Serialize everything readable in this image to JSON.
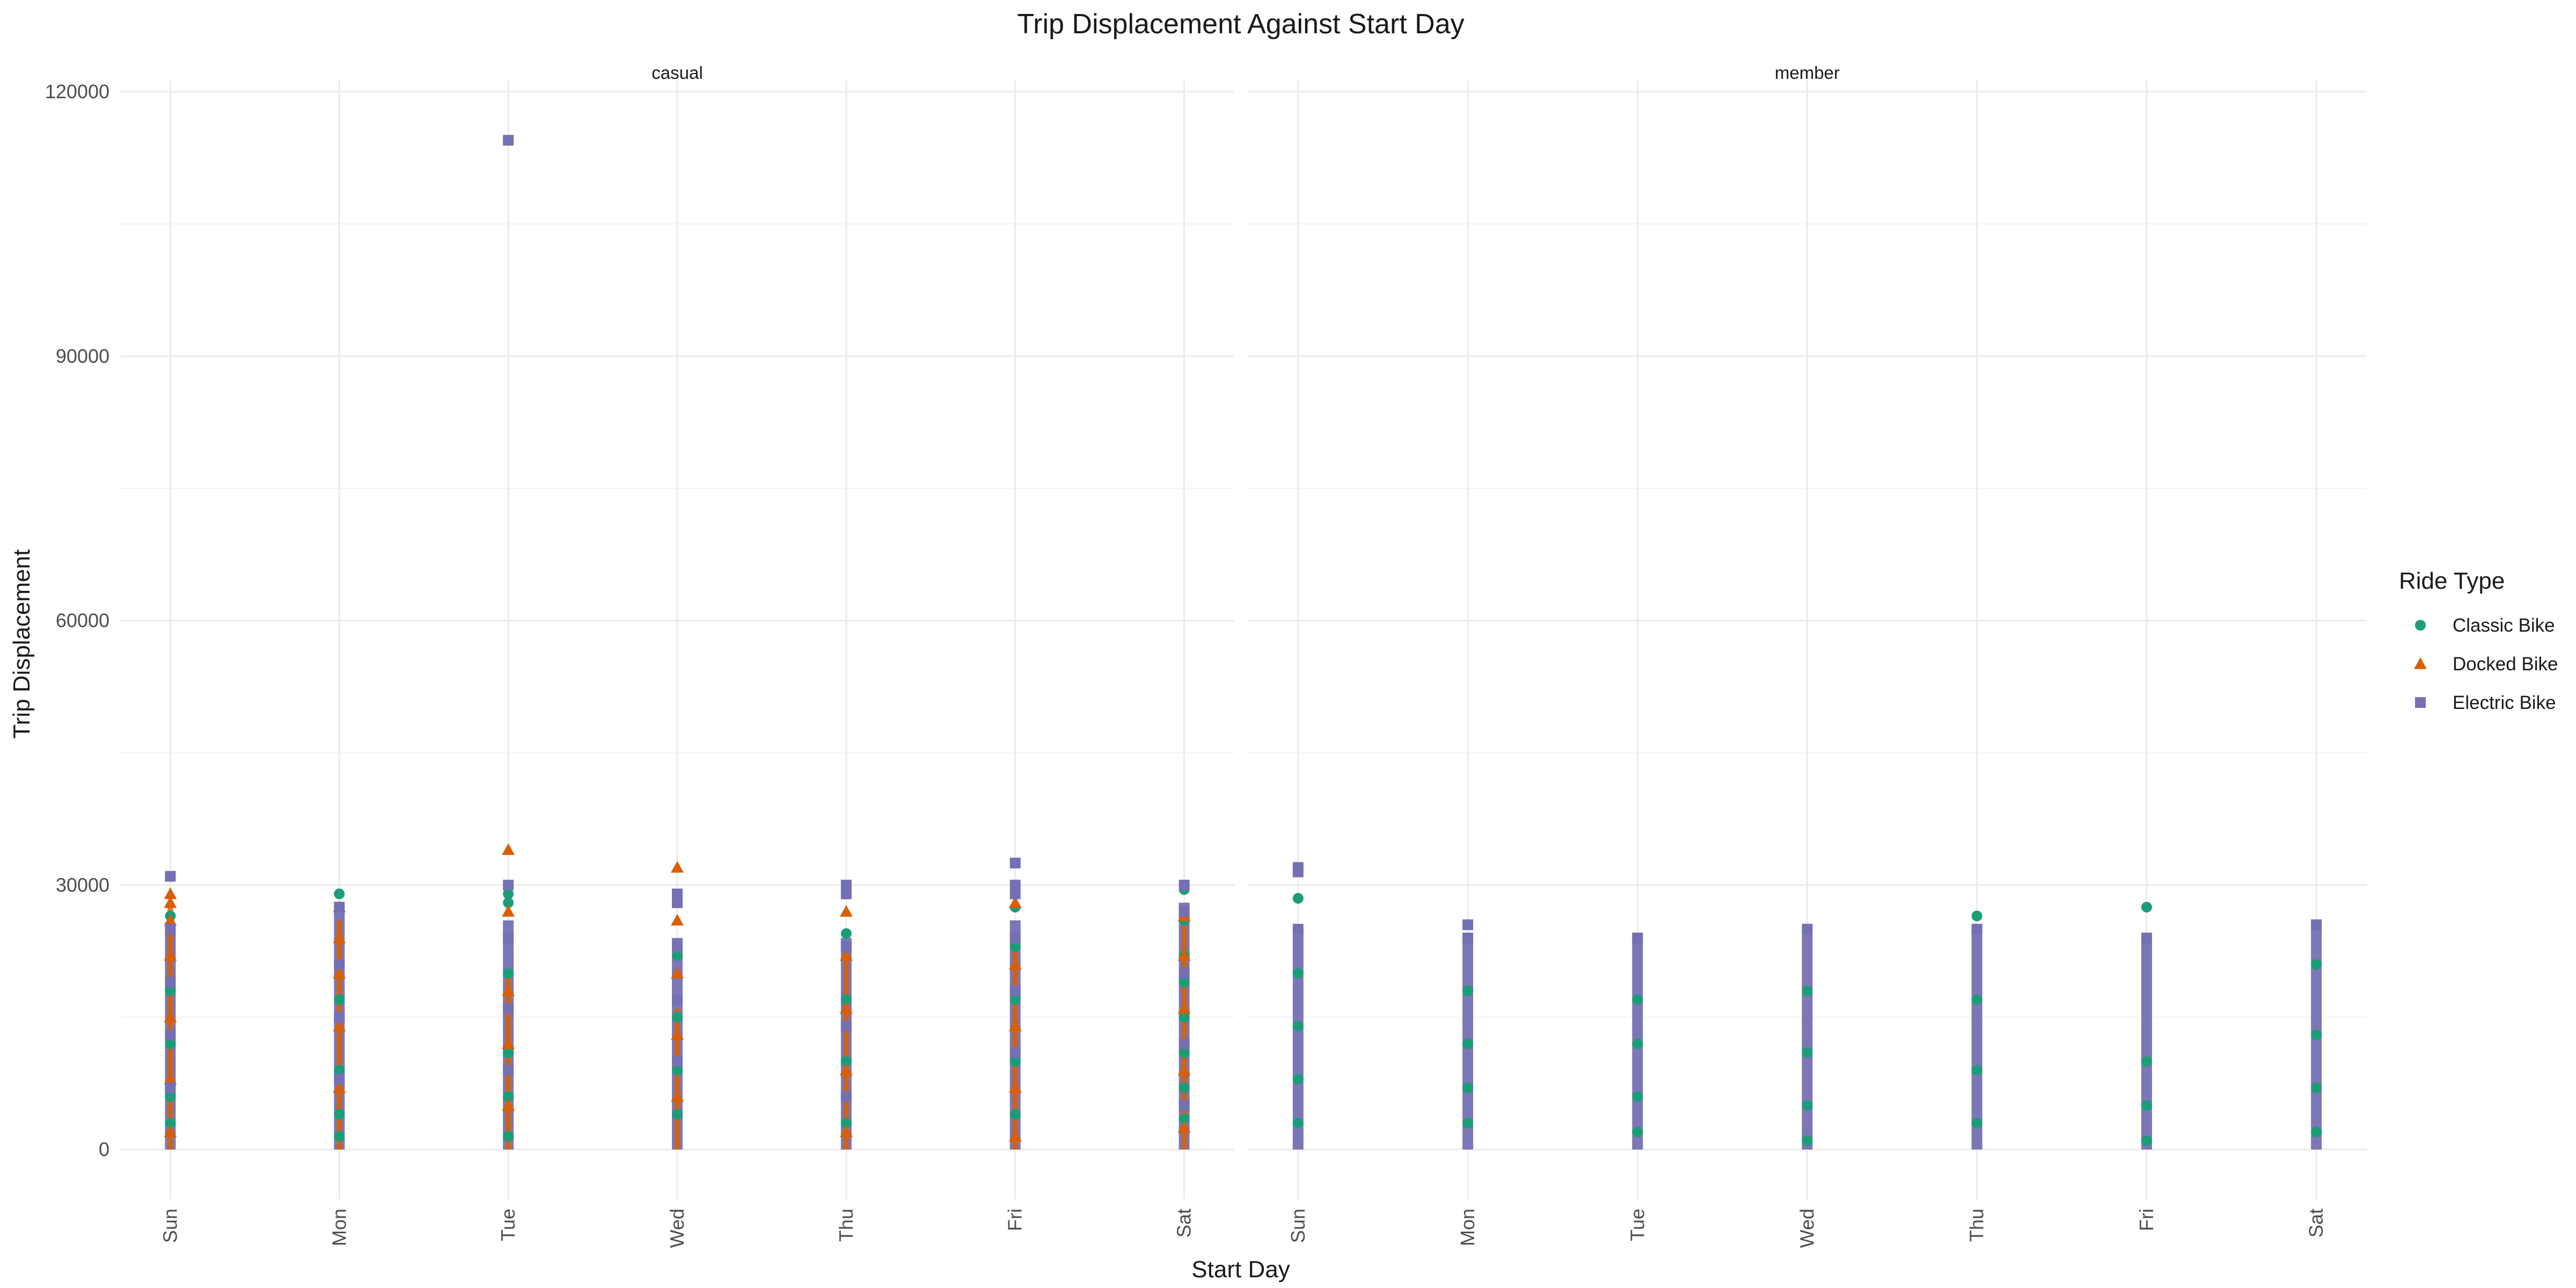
{
  "chart_data": {
    "type": "scatter",
    "title": "Trip Displacement Against Start Day",
    "xlabel": "Start Day",
    "ylabel": "Trip Displacement",
    "categories": [
      "Sun",
      "Mon",
      "Tue",
      "Wed",
      "Thu",
      "Fri",
      "Sat"
    ],
    "ylim": [
      -5000,
      120000
    ],
    "yticks": [
      "0",
      "30000",
      "60000",
      "90000",
      "120000"
    ],
    "ytick_values": [
      0,
      30000,
      60000,
      90000,
      120000
    ],
    "grid": true,
    "legend": {
      "title": "Ride Type",
      "placement": "right"
    },
    "facets": [
      {
        "label": "casual",
        "series": [
          {
            "name": "Classic Bike",
            "color": "#1b9e77",
            "shape": "circle",
            "points": [
              {
                "x": "Sun",
                "y": 26500
              },
              {
                "x": "Sun",
                "y": 18000
              },
              {
                "x": "Sun",
                "y": 12000
              },
              {
                "x": "Sun",
                "y": 6000
              },
              {
                "x": "Sun",
                "y": 3000
              },
              {
                "x": "Mon",
                "y": 29000
              },
              {
                "x": "Mon",
                "y": 17000
              },
              {
                "x": "Mon",
                "y": 9000
              },
              {
                "x": "Mon",
                "y": 4000
              },
              {
                "x": "Mon",
                "y": 1500
              },
              {
                "x": "Tue",
                "y": 29000
              },
              {
                "x": "Tue",
                "y": 28000
              },
              {
                "x": "Tue",
                "y": 20000
              },
              {
                "x": "Tue",
                "y": 11000
              },
              {
                "x": "Tue",
                "y": 6000
              },
              {
                "x": "Tue",
                "y": 1500
              },
              {
                "x": "Wed",
                "y": 22000
              },
              {
                "x": "Wed",
                "y": 15000
              },
              {
                "x": "Wed",
                "y": 9000
              },
              {
                "x": "Wed",
                "y": 4000
              },
              {
                "x": "Thu",
                "y": 24500
              },
              {
                "x": "Thu",
                "y": 17000
              },
              {
                "x": "Thu",
                "y": 10000
              },
              {
                "x": "Thu",
                "y": 3000
              },
              {
                "x": "Fri",
                "y": 27500
              },
              {
                "x": "Fri",
                "y": 23000
              },
              {
                "x": "Fri",
                "y": 17000
              },
              {
                "x": "Fri",
                "y": 10000
              },
              {
                "x": "Fri",
                "y": 4000
              },
              {
                "x": "Sat",
                "y": 29500
              },
              {
                "x": "Sat",
                "y": 26000
              },
              {
                "x": "Sat",
                "y": 22000
              },
              {
                "x": "Sat",
                "y": 19000
              },
              {
                "x": "Sat",
                "y": 15000
              },
              {
                "x": "Sat",
                "y": 11000
              },
              {
                "x": "Sat",
                "y": 7000
              },
              {
                "x": "Sat",
                "y": 3500
              }
            ]
          },
          {
            "name": "Docked Bike",
            "color": "#d95f02",
            "shape": "triangle",
            "points": [
              {
                "x": "Sun",
                "y": 29000
              },
              {
                "x": "Sun",
                "y": 28000
              },
              {
                "x": "Sun",
                "y": 26000
              },
              {
                "x": "Sun",
                "y": 22000
              },
              {
                "x": "Sun",
                "y": 15000
              },
              {
                "x": "Sun",
                "y": 8000
              },
              {
                "x": "Sun",
                "y": 2000
              },
              {
                "x": "Mon",
                "y": 27500
              },
              {
                "x": "Mon",
                "y": 24000
              },
              {
                "x": "Mon",
                "y": 20000
              },
              {
                "x": "Mon",
                "y": 14000
              },
              {
                "x": "Mon",
                "y": 7000
              },
              {
                "x": "Tue",
                "y": 34000
              },
              {
                "x": "Tue",
                "y": 27000
              },
              {
                "x": "Tue",
                "y": 18000
              },
              {
                "x": "Tue",
                "y": 12000
              },
              {
                "x": "Tue",
                "y": 5000
              },
              {
                "x": "Wed",
                "y": 32000
              },
              {
                "x": "Wed",
                "y": 26000
              },
              {
                "x": "Wed",
                "y": 20000
              },
              {
                "x": "Wed",
                "y": 13000
              },
              {
                "x": "Wed",
                "y": 6000
              },
              {
                "x": "Thu",
                "y": 27000
              },
              {
                "x": "Thu",
                "y": 22000
              },
              {
                "x": "Thu",
                "y": 16000
              },
              {
                "x": "Thu",
                "y": 9000
              },
              {
                "x": "Thu",
                "y": 2000
              },
              {
                "x": "Fri",
                "y": 28000
              },
              {
                "x": "Fri",
                "y": 21000
              },
              {
                "x": "Fri",
                "y": 14000
              },
              {
                "x": "Fri",
                "y": 7000
              },
              {
                "x": "Fri",
                "y": 1500
              },
              {
                "x": "Sat",
                "y": 26500
              },
              {
                "x": "Sat",
                "y": 22000
              },
              {
                "x": "Sat",
                "y": 16000
              },
              {
                "x": "Sat",
                "y": 9000
              },
              {
                "x": "Sat",
                "y": 2500
              }
            ]
          },
          {
            "name": "Electric Bike",
            "color": "#7570b3",
            "shape": "square",
            "points": [
              {
                "x": "Sun",
                "y": 31000
              },
              {
                "x": "Sun",
                "y": 25000
              },
              {
                "x": "Sun",
                "y": 19000
              },
              {
                "x": "Sun",
                "y": 13000
              },
              {
                "x": "Sun",
                "y": 7000
              },
              {
                "x": "Mon",
                "y": 27500
              },
              {
                "x": "Mon",
                "y": 21000
              },
              {
                "x": "Mon",
                "y": 15000
              },
              {
                "x": "Mon",
                "y": 8000
              },
              {
                "x": "Tue",
                "y": 114500
              },
              {
                "x": "Tue",
                "y": 30000
              },
              {
                "x": "Tue",
                "y": 24000
              },
              {
                "x": "Tue",
                "y": 16000
              },
              {
                "x": "Tue",
                "y": 9000
              },
              {
                "x": "Wed",
                "y": 29000
              },
              {
                "x": "Wed",
                "y": 28000
              },
              {
                "x": "Wed",
                "y": 23000
              },
              {
                "x": "Wed",
                "y": 17000
              },
              {
                "x": "Wed",
                "y": 10000
              },
              {
                "x": "Thu",
                "y": 30000
              },
              {
                "x": "Thu",
                "y": 29000
              },
              {
                "x": "Thu",
                "y": 23000
              },
              {
                "x": "Thu",
                "y": 14000
              },
              {
                "x": "Thu",
                "y": 6000
              },
              {
                "x": "Fri",
                "y": 32500
              },
              {
                "x": "Fri",
                "y": 30000
              },
              {
                "x": "Fri",
                "y": 29000
              },
              {
                "x": "Fri",
                "y": 24000
              },
              {
                "x": "Fri",
                "y": 18000
              },
              {
                "x": "Fri",
                "y": 11000
              },
              {
                "x": "Sat",
                "y": 30000
              },
              {
                "x": "Sat",
                "y": 27000
              },
              {
                "x": "Sat",
                "y": 20000
              },
              {
                "x": "Sat",
                "y": 12000
              },
              {
                "x": "Sat",
                "y": 5000
              }
            ]
          }
        ],
        "column_ranges": [
          {
            "x": "Sun",
            "series": "Electric Bike",
            "min": 0,
            "max": 25000
          },
          {
            "x": "Sun",
            "series": "Docked Bike",
            "min": 0,
            "max": 28000
          },
          {
            "x": "Mon",
            "series": "Electric Bike",
            "min": 0,
            "max": 27000
          },
          {
            "x": "Mon",
            "series": "Docked Bike",
            "min": 0,
            "max": 26000
          },
          {
            "x": "Tue",
            "series": "Electric Bike",
            "min": 0,
            "max": 26000
          },
          {
            "x": "Tue",
            "series": "Docked Bike",
            "min": 0,
            "max": 20000
          },
          {
            "x": "Wed",
            "series": "Electric Bike",
            "min": 0,
            "max": 24000
          },
          {
            "x": "Wed",
            "series": "Docked Bike",
            "min": 0,
            "max": 16000
          },
          {
            "x": "Thu",
            "series": "Electric Bike",
            "min": 0,
            "max": 24000
          },
          {
            "x": "Thu",
            "series": "Docked Bike",
            "min": 0,
            "max": 22000
          },
          {
            "x": "Fri",
            "series": "Electric Bike",
            "min": 0,
            "max": 26000
          },
          {
            "x": "Fri",
            "series": "Docked Bike",
            "min": 0,
            "max": 24000
          },
          {
            "x": "Sat",
            "series": "Electric Bike",
            "min": 0,
            "max": 28000
          },
          {
            "x": "Sat",
            "series": "Docked Bike",
            "min": 0,
            "max": 27000
          }
        ]
      },
      {
        "label": "member",
        "series": [
          {
            "name": "Classic Bike",
            "color": "#1b9e77",
            "shape": "circle",
            "points": [
              {
                "x": "Sun",
                "y": 28500
              },
              {
                "x": "Sun",
                "y": 25000
              },
              {
                "x": "Sun",
                "y": 20000
              },
              {
                "x": "Sun",
                "y": 14000
              },
              {
                "x": "Sun",
                "y": 8000
              },
              {
                "x": "Sun",
                "y": 3000
              },
              {
                "x": "Mon",
                "y": 18000
              },
              {
                "x": "Mon",
                "y": 12000
              },
              {
                "x": "Mon",
                "y": 7000
              },
              {
                "x": "Mon",
                "y": 3000
              },
              {
                "x": "Tue",
                "y": 17000
              },
              {
                "x": "Tue",
                "y": 12000
              },
              {
                "x": "Tue",
                "y": 6000
              },
              {
                "x": "Tue",
                "y": 2000
              },
              {
                "x": "Wed",
                "y": 18000
              },
              {
                "x": "Wed",
                "y": 11000
              },
              {
                "x": "Wed",
                "y": 5000
              },
              {
                "x": "Wed",
                "y": 1000
              },
              {
                "x": "Thu",
                "y": 26500
              },
              {
                "x": "Thu",
                "y": 17000
              },
              {
                "x": "Thu",
                "y": 9000
              },
              {
                "x": "Thu",
                "y": 3000
              },
              {
                "x": "Fri",
                "y": 27500
              },
              {
                "x": "Fri",
                "y": 10000
              },
              {
                "x": "Fri",
                "y": 5000
              },
              {
                "x": "Fri",
                "y": 1000
              },
              {
                "x": "Sat",
                "y": 21000
              },
              {
                "x": "Sat",
                "y": 13000
              },
              {
                "x": "Sat",
                "y": 7000
              },
              {
                "x": "Sat",
                "y": 2000
              }
            ]
          },
          {
            "name": "Electric Bike",
            "color": "#7570b3",
            "shape": "square",
            "points": [
              {
                "x": "Sun",
                "y": 32000
              },
              {
                "x": "Sun",
                "y": 31500
              },
              {
                "x": "Sun",
                "y": 25000
              },
              {
                "x": "Mon",
                "y": 25500
              },
              {
                "x": "Mon",
                "y": 24000
              },
              {
                "x": "Tue",
                "y": 24000
              },
              {
                "x": "Wed",
                "y": 25000
              },
              {
                "x": "Thu",
                "y": 25000
              },
              {
                "x": "Fri",
                "y": 24000
              },
              {
                "x": "Sat",
                "y": 25500
              }
            ]
          }
        ],
        "column_ranges": [
          {
            "x": "Sun",
            "series": "Electric Bike",
            "min": 0,
            "max": 25000
          },
          {
            "x": "Mon",
            "series": "Electric Bike",
            "min": 0,
            "max": 24000
          },
          {
            "x": "Tue",
            "series": "Electric Bike",
            "min": 0,
            "max": 24000
          },
          {
            "x": "Wed",
            "series": "Electric Bike",
            "min": 0,
            "max": 25000
          },
          {
            "x": "Thu",
            "series": "Electric Bike",
            "min": 0,
            "max": 25000
          },
          {
            "x": "Fri",
            "series": "Electric Bike",
            "min": 0,
            "max": 24000
          },
          {
            "x": "Sat",
            "series": "Electric Bike",
            "min": 0,
            "max": 25500
          }
        ]
      }
    ]
  }
}
